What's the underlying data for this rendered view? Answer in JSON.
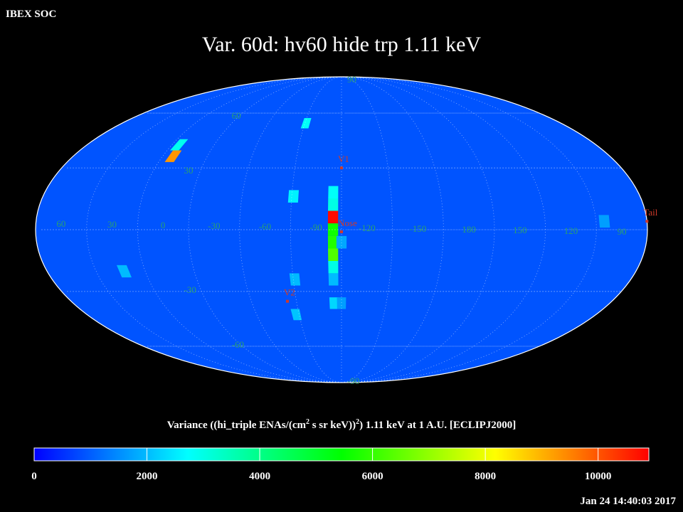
{
  "header": {
    "label": "IBEX SOC",
    "title": "Var. 60d: hv60 hide trp 1.11 keV",
    "timestamp": "Jan 24 14:40:03 2017"
  },
  "map": {
    "projection": "mollweide",
    "center_lon": -105,
    "background_value": 900,
    "lon_labels": [
      60,
      30,
      0,
      -30,
      -60,
      -90,
      -120,
      -150,
      180,
      150,
      120,
      90
    ],
    "lat_labels": [
      90,
      60,
      30,
      -30,
      -60,
      -90
    ],
    "cells": [
      {
        "lon": -100,
        "lat": 18,
        "value": 2800
      },
      {
        "lon": -100,
        "lat": 12,
        "value": 3000
      },
      {
        "lon": -100,
        "lat": 6,
        "value": 10800
      },
      {
        "lon": -100,
        "lat": 0,
        "value": 5600
      },
      {
        "lon": -100,
        "lat": -6,
        "value": 5800
      },
      {
        "lon": -100,
        "lat": -12,
        "value": 6300
      },
      {
        "lon": -100,
        "lat": -18,
        "value": 3000
      },
      {
        "lon": -100,
        "lat": -24,
        "value": 2000
      },
      {
        "lon": -100,
        "lat": -36,
        "value": 2300
      },
      {
        "lon": -105,
        "lat": -6,
        "value": 1800
      },
      {
        "lon": -105,
        "lat": -36,
        "value": 1700
      },
      {
        "lon": 8,
        "lat": 36,
        "value": 9300
      },
      {
        "lon": 10,
        "lat": 42,
        "value": 2900
      },
      {
        "lon": -76,
        "lat": 54,
        "value": 2800
      },
      {
        "lon": -76,
        "lat": 16,
        "value": 2600
      },
      {
        "lon": -76,
        "lat": -24,
        "value": 2000
      },
      {
        "lon": 28,
        "lat": -20,
        "value": 2000
      },
      {
        "lon": -73,
        "lat": -42,
        "value": 2100
      },
      {
        "lon": 100,
        "lat": 4,
        "value": 1700
      }
    ],
    "markers": [
      {
        "label": "V1",
        "lon": -105,
        "lat": 30
      },
      {
        "label": "Nose",
        "lon": -105,
        "lat": -1
      },
      {
        "label": "V2",
        "lon": -69,
        "lat": -35
      },
      {
        "label": "Tail",
        "lon": 75,
        "lat": 4
      }
    ]
  },
  "colorbar": {
    "title_parts": [
      "Variance ((hi_triple ENAs/(cm",
      "2",
      " s sr keV))",
      "2",
      ") 1.11 keV at 1 A.U. [ECLIPJ2000]"
    ],
    "colors": [
      "#0000ff",
      "#00ffff",
      "#00ff00",
      "#ffff00",
      "#ff0000"
    ],
    "lim": [
      0,
      10900
    ],
    "ticks": [
      0,
      2000,
      4000,
      6000,
      8000,
      10000
    ]
  }
}
